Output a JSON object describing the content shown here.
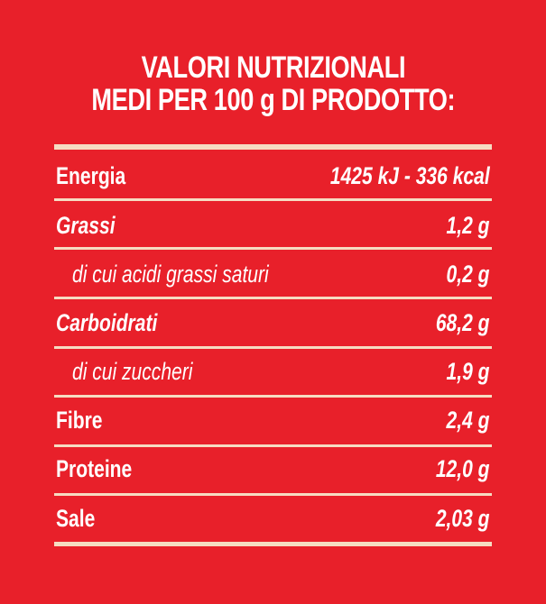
{
  "header": {
    "title_lines": [
      "VALORI NUTRIZIONALI",
      "MEDI PER 100 g DI PRODOTTO:"
    ]
  },
  "table": {
    "rows": [
      [
        "Energia",
        "1425 kJ - 336 kcal"
      ],
      [
        "Grassi",
        "1,2 g"
      ],
      [
        "di cui acidi grassi saturi",
        "0,2 g"
      ],
      [
        "Carboidrati",
        "68,2 g"
      ],
      [
        "di cui zuccheri",
        "1,9 g"
      ],
      [
        "Fibre",
        "2,4 g"
      ],
      [
        "Proteine",
        "12,0 g"
      ],
      [
        "Sale",
        "2,03 g"
      ]
    ]
  }
}
